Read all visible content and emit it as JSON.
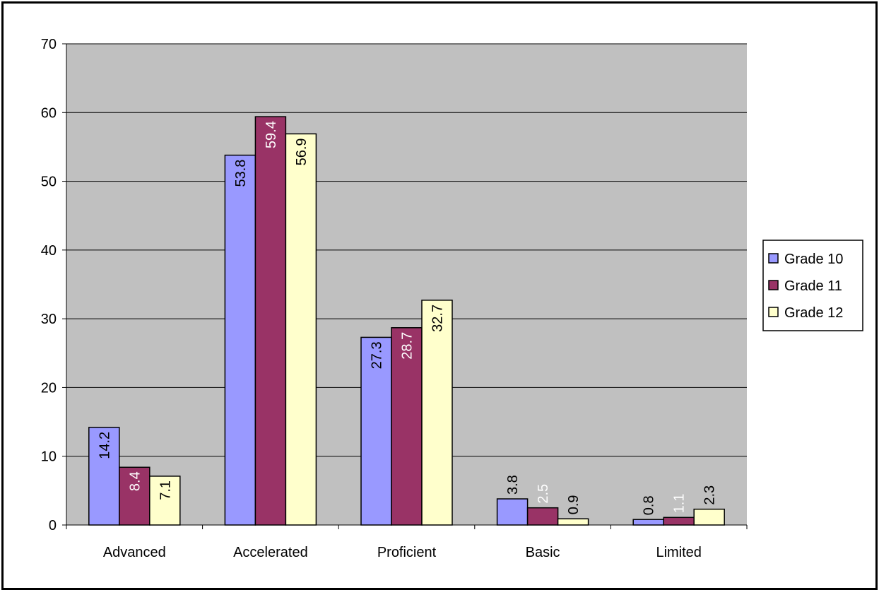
{
  "chart_data": {
    "type": "bar",
    "categories": [
      "Advanced",
      "Accelerated",
      "Proficient",
      "Basic",
      "Limited"
    ],
    "series": [
      {
        "name": "Grade 10",
        "color": "#9999ff",
        "label_color": "#000000",
        "values": [
          14.2,
          53.8,
          27.3,
          3.8,
          0.8
        ]
      },
      {
        "name": "Grade 11",
        "color": "#993366",
        "label_color": "#ffffff",
        "values": [
          8.4,
          59.4,
          28.7,
          2.5,
          1.1
        ]
      },
      {
        "name": "Grade 12",
        "color": "#ffffcc",
        "label_color": "#000000",
        "values": [
          7.1,
          56.9,
          32.7,
          0.9,
          2.3
        ]
      }
    ],
    "value_label_text": [
      [
        "14.2",
        "53.8",
        "27.3",
        "3.8",
        "0.8"
      ],
      [
        "8.4",
        "59.4",
        "28.7",
        "2.5",
        "1.1"
      ],
      [
        "7.1",
        "56.9",
        "32.7",
        "0.9",
        "2.3"
      ]
    ],
    "ylim": [
      0,
      70
    ],
    "y_ticks": [
      "0",
      "10",
      "20",
      "30",
      "40",
      "50",
      "60",
      "70"
    ],
    "grid": true,
    "plot_background": "#c0c0c0",
    "legend_position": "right",
    "title": "",
    "xlabel": "",
    "ylabel": ""
  }
}
